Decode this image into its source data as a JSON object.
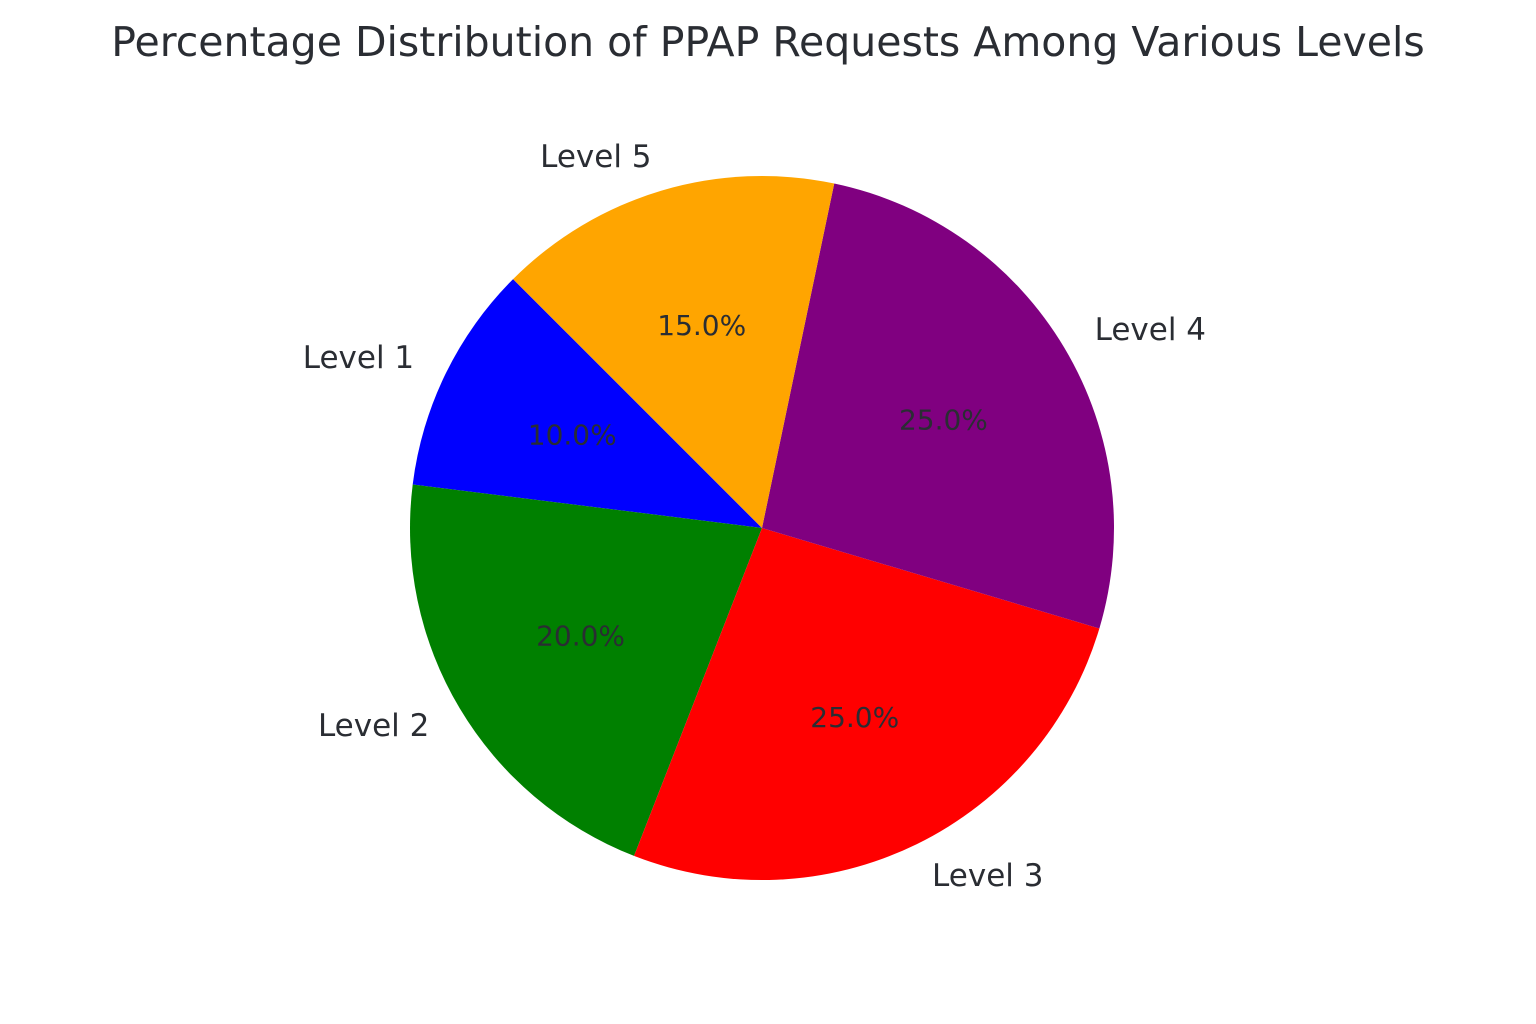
{
  "chart_data": {
    "type": "pie",
    "title": "Percentage Distribution of PPAP Requests Among Various Levels",
    "categories": [
      "Level 1",
      "Level 2",
      "Level 3",
      "Level 4",
      "Level 5"
    ],
    "values": [
      10.0,
      20.0,
      25.0,
      25.0,
      15.0
    ],
    "value_labels": [
      "10.0%",
      "20.0%",
      "25.0%",
      "25.0%",
      "15.0%"
    ],
    "colors": [
      "#0000ff",
      "#008000",
      "#ff0000",
      "#800080",
      "#ffa500"
    ],
    "start_angle_deg": 135,
    "direction": "counterclockwise",
    "legend": "none"
  }
}
